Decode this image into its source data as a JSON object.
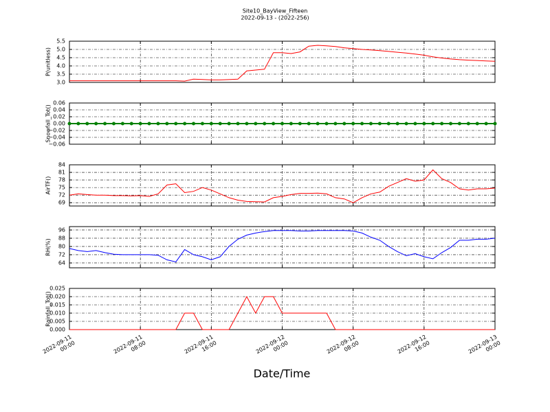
{
  "chart_data": [
    {
      "type": "line",
      "title": "Site10_BayView_Fifteen",
      "subtitle": "2022-09-13 - (2022-256)",
      "ylabel": "P(unitless)",
      "color": "#ff0000",
      "x": [
        "2022-09-11 00:00",
        "2022-09-11 01:00",
        "2022-09-11 02:00",
        "2022-09-11 03:00",
        "2022-09-11 04:00",
        "2022-09-11 05:00",
        "2022-09-11 06:00",
        "2022-09-11 07:00",
        "2022-09-11 08:00",
        "2022-09-11 09:00",
        "2022-09-11 10:00",
        "2022-09-11 11:00",
        "2022-09-11 12:00",
        "2022-09-11 13:00",
        "2022-09-11 14:00",
        "2022-09-11 15:00",
        "2022-09-11 16:00",
        "2022-09-11 17:00",
        "2022-09-11 18:00",
        "2022-09-11 19:00",
        "2022-09-11 20:00",
        "2022-09-11 21:00",
        "2022-09-11 22:00",
        "2022-09-11 23:00",
        "2022-09-12 00:00",
        "2022-09-12 01:00",
        "2022-09-12 02:00",
        "2022-09-12 03:00",
        "2022-09-12 04:00",
        "2022-09-12 05:00",
        "2022-09-12 06:00",
        "2022-09-12 07:00",
        "2022-09-12 08:00",
        "2022-09-12 09:00",
        "2022-09-12 10:00",
        "2022-09-12 11:00",
        "2022-09-12 12:00",
        "2022-09-12 13:00",
        "2022-09-12 14:00",
        "2022-09-12 15:00",
        "2022-09-12 16:00",
        "2022-09-12 17:00",
        "2022-09-12 18:00",
        "2022-09-12 19:00",
        "2022-09-12 20:00",
        "2022-09-12 21:00",
        "2022-09-12 22:00",
        "2022-09-12 23:00",
        "2022-09-13 00:00"
      ],
      "values": [
        3.1,
        3.1,
        3.1,
        3.1,
        3.1,
        3.1,
        3.1,
        3.1,
        3.1,
        3.1,
        3.1,
        3.1,
        3.1,
        3.08,
        3.2,
        3.18,
        3.15,
        3.15,
        3.17,
        3.2,
        3.7,
        3.75,
        3.8,
        4.8,
        4.8,
        4.75,
        4.85,
        5.2,
        5.25,
        5.22,
        5.18,
        5.1,
        5.05,
        5.0,
        4.97,
        4.93,
        4.88,
        4.83,
        4.78,
        4.72,
        4.65,
        4.55,
        4.48,
        4.42,
        4.38,
        4.35,
        4.33,
        4.3,
        4.28
      ],
      "ylim": [
        3.0,
        5.5
      ],
      "yticks": [
        {
          "value": 3,
          "label": "3.0"
        },
        3.5,
        {
          "value": 4,
          "label": "4.0"
        },
        4.5,
        {
          "value": 5,
          "label": "5.0"
        },
        5.5
      ],
      "grid": true
    },
    {
      "type": "line",
      "ylabel": "Snowfall_Tot()",
      "color": "#008000",
      "marker": true,
      "x": [
        "2022-09-11 00:00",
        "2022-09-11 01:00",
        "2022-09-11 02:00",
        "2022-09-11 03:00",
        "2022-09-11 04:00",
        "2022-09-11 05:00",
        "2022-09-11 06:00",
        "2022-09-11 07:00",
        "2022-09-11 08:00",
        "2022-09-11 09:00",
        "2022-09-11 10:00",
        "2022-09-11 11:00",
        "2022-09-11 12:00",
        "2022-09-11 13:00",
        "2022-09-11 14:00",
        "2022-09-11 15:00",
        "2022-09-11 16:00",
        "2022-09-11 17:00",
        "2022-09-11 18:00",
        "2022-09-11 19:00",
        "2022-09-11 20:00",
        "2022-09-11 21:00",
        "2022-09-11 22:00",
        "2022-09-11 23:00",
        "2022-09-12 00:00",
        "2022-09-12 01:00",
        "2022-09-12 02:00",
        "2022-09-12 03:00",
        "2022-09-12 04:00",
        "2022-09-12 05:00",
        "2022-09-12 06:00",
        "2022-09-12 07:00",
        "2022-09-12 08:00",
        "2022-09-12 09:00",
        "2022-09-12 10:00",
        "2022-09-12 11:00",
        "2022-09-12 12:00",
        "2022-09-12 13:00",
        "2022-09-12 14:00",
        "2022-09-12 15:00",
        "2022-09-12 16:00",
        "2022-09-12 17:00",
        "2022-09-12 18:00",
        "2022-09-12 19:00",
        "2022-09-12 20:00",
        "2022-09-12 21:00",
        "2022-09-12 22:00",
        "2022-09-12 23:00",
        "2022-09-13 00:00"
      ],
      "values": [
        0,
        0,
        0,
        0,
        0,
        0,
        0,
        0,
        0,
        0,
        0,
        0,
        0,
        0,
        0,
        0,
        0,
        0,
        0,
        0,
        0,
        0,
        0,
        0,
        0,
        0,
        0,
        0,
        0,
        0,
        0,
        0,
        0,
        0,
        0,
        0,
        0,
        0,
        0,
        0,
        0,
        0,
        0,
        0,
        0,
        0,
        0,
        0,
        0
      ],
      "ylim": [
        -0.06,
        0.06
      ],
      "yticks": [
        {
          "value": -0.06,
          "label": "−0.06"
        },
        {
          "value": -0.04,
          "label": "−0.04"
        },
        {
          "value": -0.02,
          "label": "−0.02"
        },
        {
          "value": 0,
          "label": "0.00"
        },
        0.02,
        0.04,
        0.06
      ],
      "grid": true
    },
    {
      "type": "line",
      "ylabel": "AirTF()",
      "color": "#ff0000",
      "x": [
        "2022-09-11 00:00",
        "2022-09-11 01:00",
        "2022-09-11 02:00",
        "2022-09-11 03:00",
        "2022-09-11 04:00",
        "2022-09-11 05:00",
        "2022-09-11 06:00",
        "2022-09-11 07:00",
        "2022-09-11 08:00",
        "2022-09-11 09:00",
        "2022-09-11 10:00",
        "2022-09-11 11:00",
        "2022-09-11 12:00",
        "2022-09-11 13:00",
        "2022-09-11 14:00",
        "2022-09-11 15:00",
        "2022-09-11 16:00",
        "2022-09-11 17:00",
        "2022-09-11 18:00",
        "2022-09-11 19:00",
        "2022-09-11 20:00",
        "2022-09-11 21:00",
        "2022-09-11 22:00",
        "2022-09-11 23:00",
        "2022-09-12 00:00",
        "2022-09-12 01:00",
        "2022-09-12 02:00",
        "2022-09-12 03:00",
        "2022-09-12 04:00",
        "2022-09-12 05:00",
        "2022-09-12 06:00",
        "2022-09-12 07:00",
        "2022-09-12 08:00",
        "2022-09-12 09:00",
        "2022-09-12 10:00",
        "2022-09-12 11:00",
        "2022-09-12 12:00",
        "2022-09-12 13:00",
        "2022-09-12 14:00",
        "2022-09-12 15:00",
        "2022-09-12 16:00",
        "2022-09-12 17:00",
        "2022-09-12 18:00",
        "2022-09-12 19:00",
        "2022-09-12 20:00",
        "2022-09-12 21:00",
        "2022-09-12 22:00",
        "2022-09-12 23:00",
        "2022-09-13 00:00"
      ],
      "values": [
        72,
        72.5,
        72.2,
        72,
        72,
        71.8,
        71.8,
        71.7,
        71.8,
        71.5,
        72.5,
        76,
        76.5,
        73,
        73.5,
        75,
        74,
        72.5,
        71,
        70,
        69.5,
        69.4,
        69.3,
        71,
        71.5,
        72.2,
        72.7,
        72.7,
        72.8,
        72.5,
        71,
        70.5,
        69,
        71,
        72.5,
        73.2,
        75.5,
        77,
        78.5,
        77.5,
        78,
        82,
        78.5,
        77,
        74.5,
        74,
        74.5,
        74.5,
        74.8
      ],
      "ylim": [
        67.7,
        84
      ],
      "yticks": [
        69,
        72,
        75,
        78,
        81,
        84
      ],
      "grid": true
    },
    {
      "type": "line",
      "ylabel": "RH(%)",
      "color": "#0000ff",
      "x": [
        "2022-09-11 00:00",
        "2022-09-11 01:00",
        "2022-09-11 02:00",
        "2022-09-11 03:00",
        "2022-09-11 04:00",
        "2022-09-11 05:00",
        "2022-09-11 06:00",
        "2022-09-11 07:00",
        "2022-09-11 08:00",
        "2022-09-11 09:00",
        "2022-09-11 10:00",
        "2022-09-11 11:00",
        "2022-09-11 12:00",
        "2022-09-11 13:00",
        "2022-09-11 14:00",
        "2022-09-11 15:00",
        "2022-09-11 16:00",
        "2022-09-11 17:00",
        "2022-09-11 18:00",
        "2022-09-11 19:00",
        "2022-09-11 20:00",
        "2022-09-11 21:00",
        "2022-09-11 22:00",
        "2022-09-11 23:00",
        "2022-09-12 00:00",
        "2022-09-12 01:00",
        "2022-09-12 02:00",
        "2022-09-12 03:00",
        "2022-09-12 04:00",
        "2022-09-12 05:00",
        "2022-09-12 06:00",
        "2022-09-12 07:00",
        "2022-09-12 08:00",
        "2022-09-12 09:00",
        "2022-09-12 10:00",
        "2022-09-12 11:00",
        "2022-09-12 12:00",
        "2022-09-12 13:00",
        "2022-09-12 14:00",
        "2022-09-12 15:00",
        "2022-09-12 16:00",
        "2022-09-12 17:00",
        "2022-09-12 18:00",
        "2022-09-12 19:00",
        "2022-09-12 20:00",
        "2022-09-12 21:00",
        "2022-09-12 22:00",
        "2022-09-12 23:00",
        "2022-09-13 00:00"
      ],
      "values": [
        78,
        76,
        75,
        76,
        74,
        72.5,
        72,
        72,
        72,
        72,
        71.5,
        67,
        65,
        77,
        72,
        70,
        67,
        70,
        80,
        87,
        91,
        93,
        94.5,
        95.5,
        95.5,
        95.5,
        95,
        95,
        95.5,
        95.5,
        95.5,
        95.5,
        95,
        93,
        89,
        86,
        80,
        75,
        71,
        73,
        70,
        68,
        74,
        79,
        86,
        86,
        87,
        87,
        88
      ],
      "ylim": [
        59.3,
        99.3
      ],
      "yticks": [
        64,
        72,
        80,
        88,
        96
      ],
      "grid": true
    },
    {
      "type": "line",
      "ylabel": "Rainfall_Tot()",
      "color": "#ff0000",
      "xlabel": "Date/Time",
      "x": [
        "2022-09-11 00:00",
        "2022-09-11 01:00",
        "2022-09-11 02:00",
        "2022-09-11 03:00",
        "2022-09-11 04:00",
        "2022-09-11 05:00",
        "2022-09-11 06:00",
        "2022-09-11 07:00",
        "2022-09-11 08:00",
        "2022-09-11 09:00",
        "2022-09-11 10:00",
        "2022-09-11 11:00",
        "2022-09-11 12:00",
        "2022-09-11 13:00",
        "2022-09-11 14:00",
        "2022-09-11 15:00",
        "2022-09-11 16:00",
        "2022-09-11 17:00",
        "2022-09-11 18:00",
        "2022-09-11 19:00",
        "2022-09-11 20:00",
        "2022-09-11 21:00",
        "2022-09-11 22:00",
        "2022-09-11 23:00",
        "2022-09-12 00:00",
        "2022-09-12 01:00",
        "2022-09-12 02:00",
        "2022-09-12 03:00",
        "2022-09-12 04:00",
        "2022-09-12 05:00",
        "2022-09-12 06:00",
        "2022-09-12 07:00",
        "2022-09-12 08:00",
        "2022-09-12 09:00",
        "2022-09-12 10:00",
        "2022-09-12 11:00",
        "2022-09-12 12:00",
        "2022-09-12 13:00",
        "2022-09-12 14:00",
        "2022-09-12 15:00",
        "2022-09-12 16:00",
        "2022-09-12 17:00",
        "2022-09-12 18:00",
        "2022-09-12 19:00",
        "2022-09-12 20:00",
        "2022-09-12 21:00",
        "2022-09-12 22:00",
        "2022-09-12 23:00",
        "2022-09-13 00:00"
      ],
      "values": [
        0,
        0,
        0,
        0,
        0,
        0,
        0,
        0,
        0,
        0,
        0,
        0,
        0,
        0.01,
        0.01,
        0,
        0,
        0,
        0,
        0.01,
        0.02,
        0.01,
        0.02,
        0.02,
        0.01,
        0.01,
        0.01,
        0.01,
        0.01,
        0.01,
        0,
        0,
        0,
        0,
        0,
        0,
        0,
        0,
        0,
        0,
        0,
        0,
        0,
        0,
        0,
        0,
        0,
        0,
        0
      ],
      "ylim": [
        0,
        0.025
      ],
      "yticks": [
        {
          "value": 0,
          "label": "0.000"
        },
        {
          "value": 0.005,
          "label": "0.005"
        },
        {
          "value": 0.01,
          "label": "0.010"
        },
        {
          "value": 0.015,
          "label": "0.015"
        },
        {
          "value": 0.02,
          "label": "0.020"
        },
        {
          "value": 0.025,
          "label": "0.025"
        }
      ],
      "xticks": [
        "2022-09-11 00:00",
        "2022-09-11 08:00",
        "2022-09-11 16:00",
        "2022-09-12 00:00",
        "2022-09-12 08:00",
        "2022-09-12 16:00",
        "2022-09-13 00:00"
      ],
      "grid": true
    }
  ]
}
